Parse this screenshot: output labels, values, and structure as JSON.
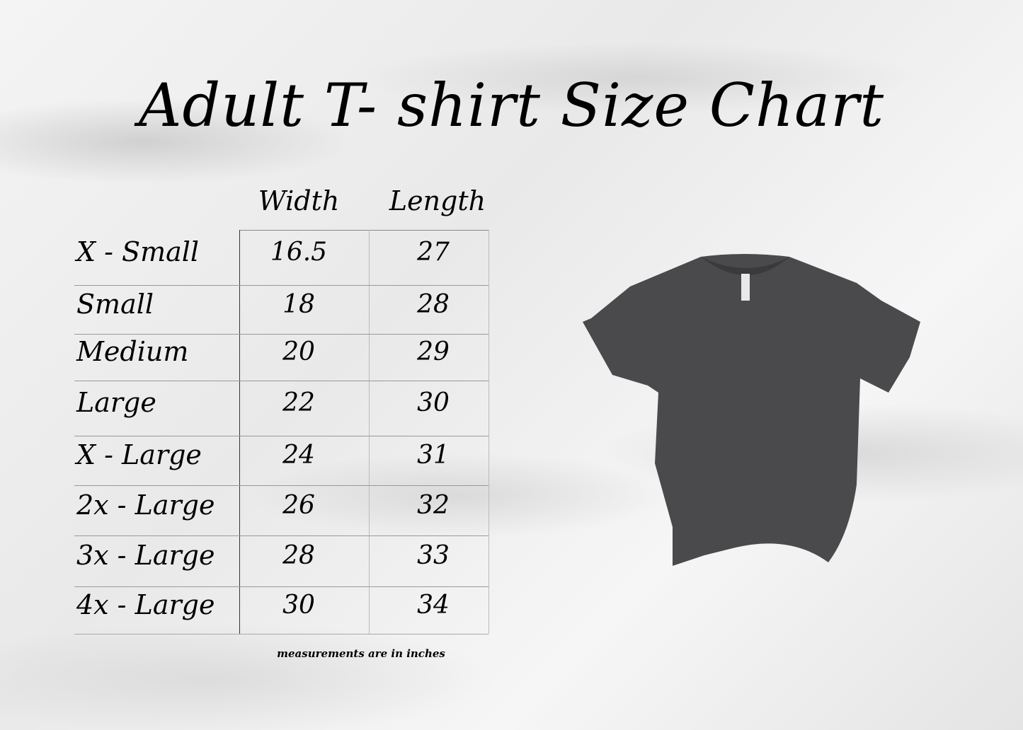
{
  "title": "Adult T- shirt Size Chart",
  "table": {
    "columns": [
      "Width",
      "Length"
    ],
    "rows": [
      {
        "size": "X - Small",
        "width": "16.5",
        "length": "27"
      },
      {
        "size": "Small",
        "width": "18",
        "length": "28"
      },
      {
        "size": "Medium",
        "width": "20",
        "length": "29"
      },
      {
        "size": "Large",
        "width": "22",
        "length": "30"
      },
      {
        "size": "X - Large",
        "width": "24",
        "length": "31"
      },
      {
        "size": "2x - Large",
        "width": "26",
        "length": "32"
      },
      {
        "size": "3x - Large",
        "width": "28",
        "length": "33"
      },
      {
        "size": "4x - Large",
        "width": "30",
        "length": "34"
      }
    ]
  },
  "note": "measurements are in inches",
  "colors": {
    "shirt": "#4a4a4d",
    "text": "#000000"
  }
}
